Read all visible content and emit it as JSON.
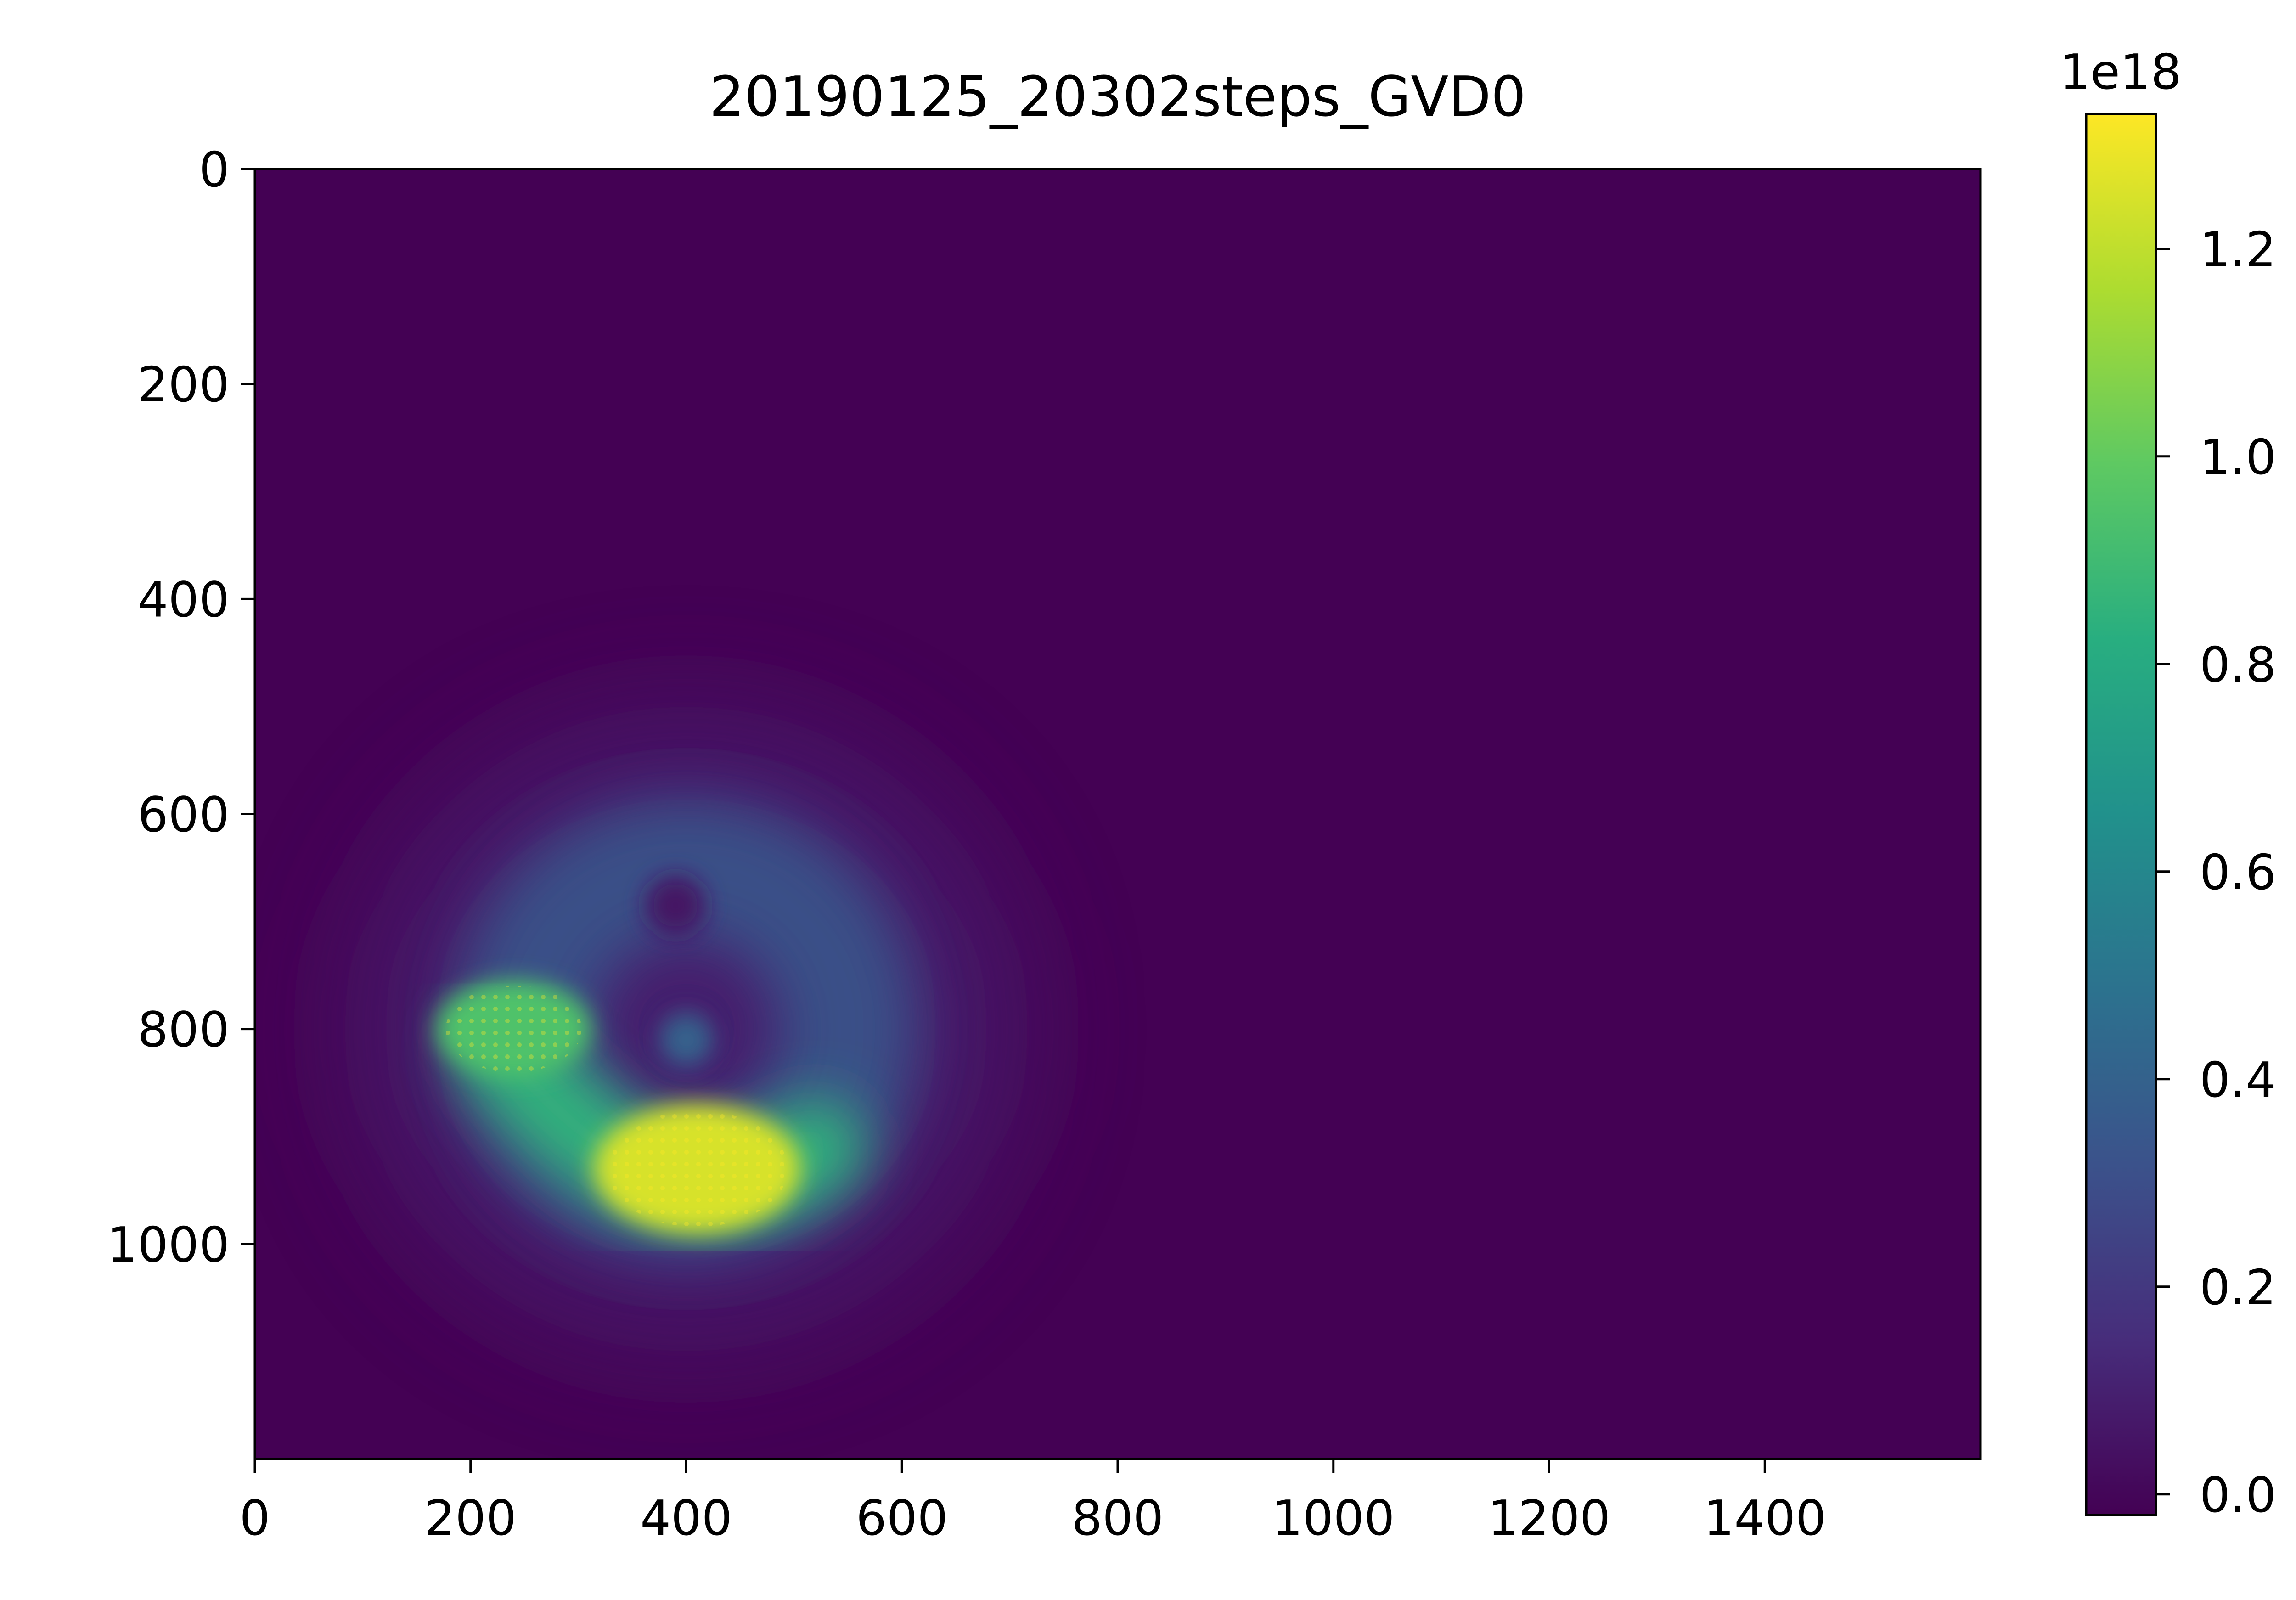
{
  "chart_data": {
    "type": "heatmap",
    "title": "20190125_20302steps_GVD0",
    "colormap": "viridis",
    "x_range": [
      0,
      1600
    ],
    "y_range": [
      0,
      1200
    ],
    "y_inverted": true,
    "x_ticks": [
      "0",
      "200",
      "400",
      "600",
      "800",
      "1000",
      "1200",
      "1400"
    ],
    "y_ticks": [
      "0",
      "200",
      "400",
      "600",
      "800",
      "1000"
    ],
    "colorbar": {
      "range": [
        -0.02,
        1.33
      ],
      "multiplier": "1e18",
      "ticks": [
        "0.0",
        "0.2",
        "0.4",
        "0.6",
        "0.8",
        "1.0",
        "1.2"
      ]
    },
    "background_value": 0.0,
    "features": [
      {
        "shape": "diffuse halo",
        "center": [
          400,
          800
        ],
        "radius": 300,
        "value": 0.1
      },
      {
        "shape": "ring",
        "center": [
          400,
          800
        ],
        "radius": 150,
        "value": 0.35
      },
      {
        "shape": "lower arc",
        "from": [
          230,
          820
        ],
        "to": [
          520,
          910
        ],
        "value": 0.85
      },
      {
        "shape": "hot spot",
        "center": [
          240,
          800
        ],
        "radius": 45,
        "value": 0.95
      },
      {
        "shape": "hot spot",
        "center": [
          410,
          930
        ],
        "radius": 60,
        "value": 1.25
      },
      {
        "shape": "central spot",
        "center": [
          400,
          810
        ],
        "radius": 25,
        "value": 0.4
      },
      {
        "shape": "dark hole",
        "center": [
          390,
          685
        ],
        "radius": 28,
        "value": 0.05
      }
    ]
  }
}
